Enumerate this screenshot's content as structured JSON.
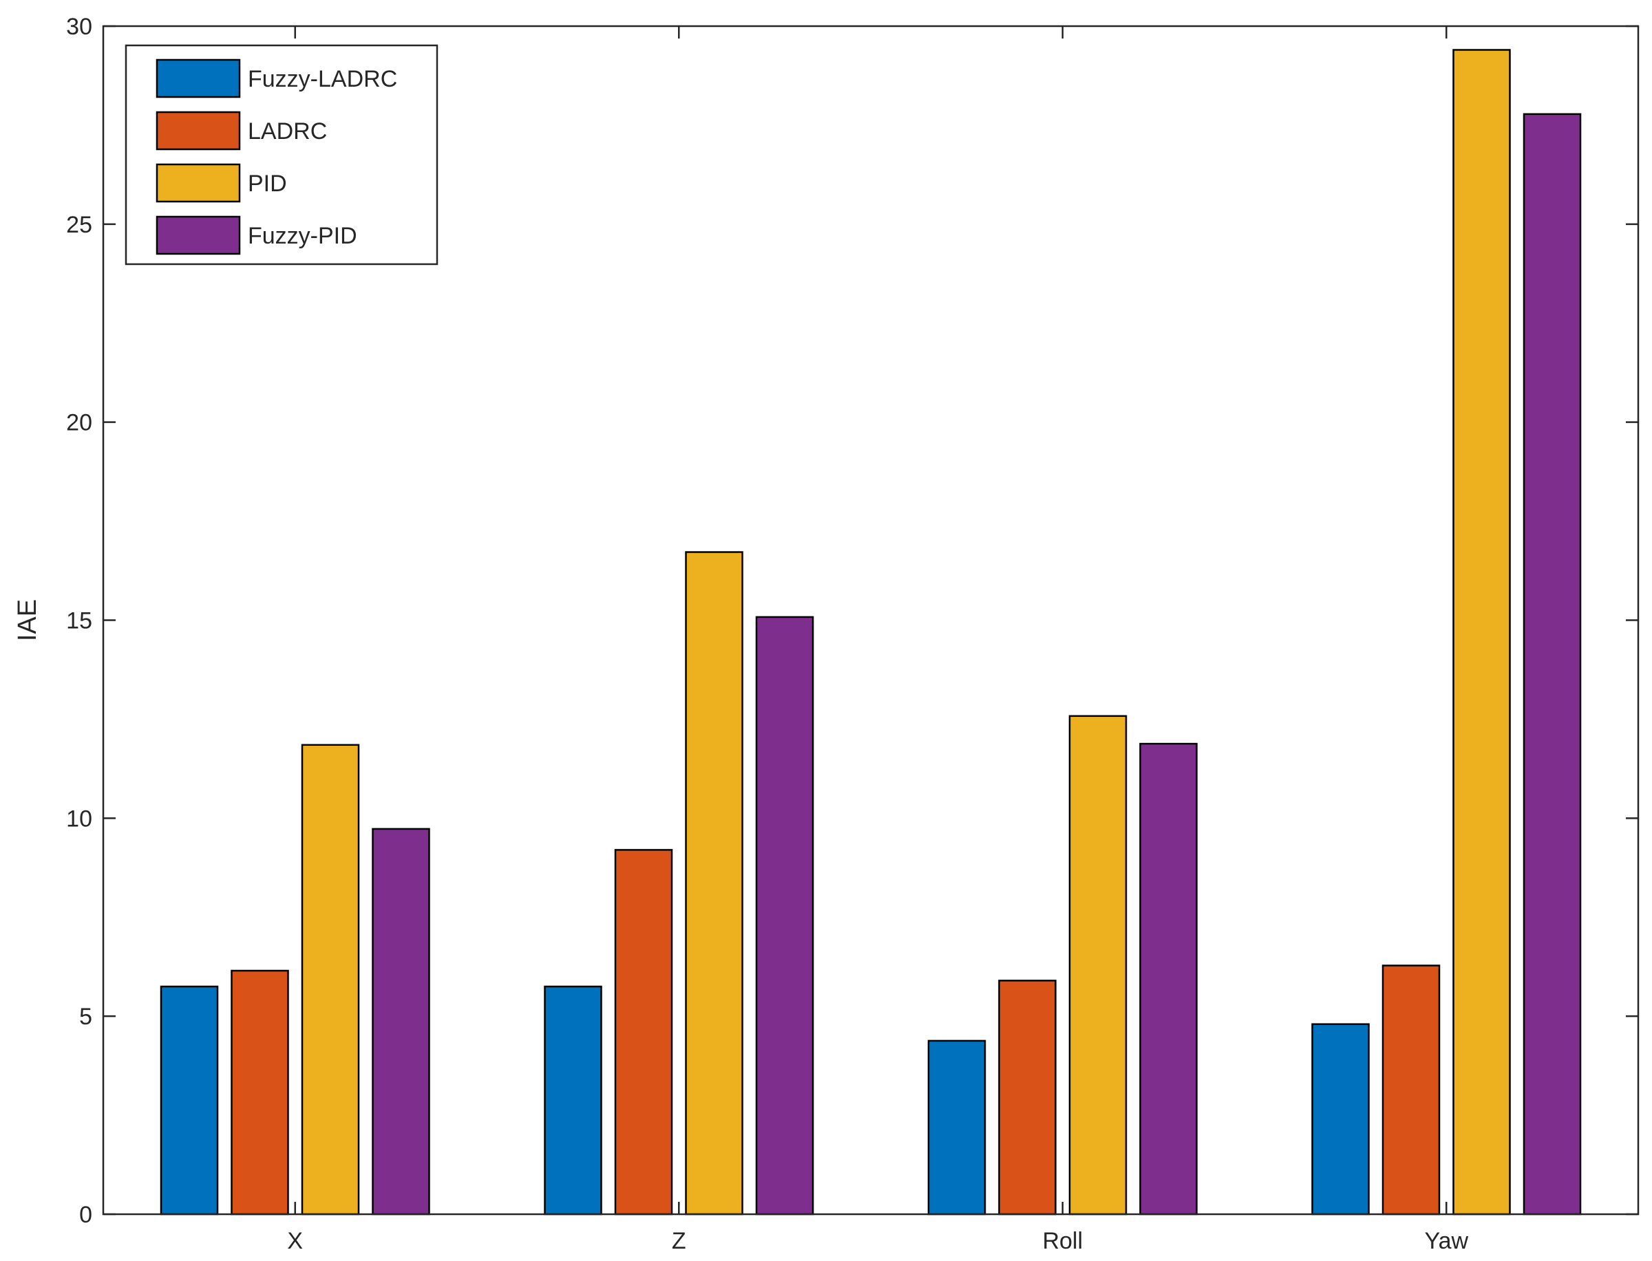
{
  "chart_data": {
    "type": "bar",
    "title": "",
    "xlabel": "",
    "ylabel": "IAE",
    "ylim": [
      0,
      30
    ],
    "yticks": [
      0,
      5,
      10,
      15,
      20,
      25,
      30
    ],
    "categories": [
      "X",
      "Z",
      "Roll",
      "Yaw"
    ],
    "grid": false,
    "legend_position": "top-left",
    "series": [
      {
        "name": "Fuzzy-LADRC",
        "color": "#0072BD",
        "values": [
          5.75,
          5.75,
          4.38,
          4.8
        ]
      },
      {
        "name": "LADRC",
        "color": "#D95319",
        "values": [
          6.15,
          9.2,
          5.9,
          6.28
        ]
      },
      {
        "name": "PID",
        "color": "#EDB120",
        "values": [
          11.85,
          16.72,
          12.58,
          29.4
        ]
      },
      {
        "name": "Fuzzy-PID",
        "color": "#7E2F8E",
        "values": [
          9.73,
          15.08,
          11.88,
          27.78
        ]
      }
    ]
  }
}
